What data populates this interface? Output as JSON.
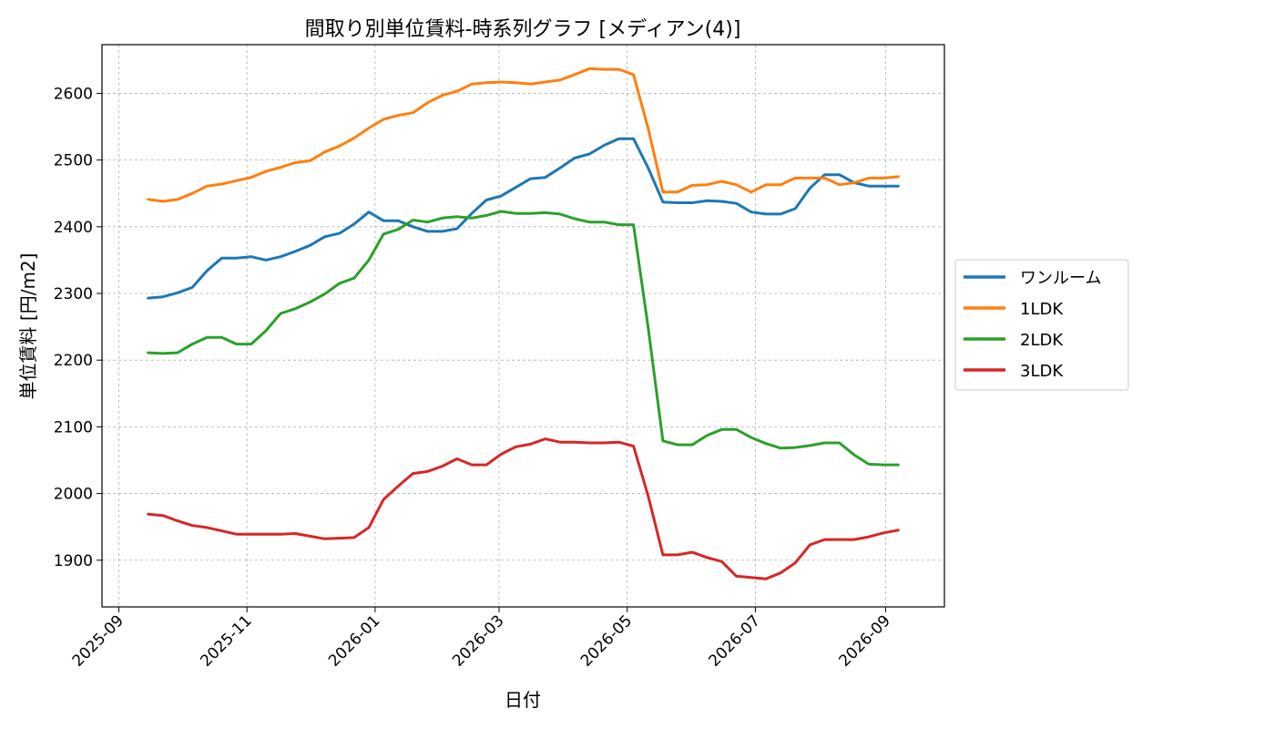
{
  "chart_data": {
    "type": "line",
    "title": "間取り別単位賃料-時系列グラフ [メディアン(4)]",
    "xlabel": "日付",
    "ylabel": "単位賃料 [円/m2]",
    "xlim": [
      "2025-08-24",
      "2026-09-29"
    ],
    "ylim": [
      1830,
      2673
    ],
    "grid": true,
    "legend_position": "right",
    "x_ticks": [
      "2025-09",
      "2025-11",
      "2026-01",
      "2026-03",
      "2026-05",
      "2026-07",
      "2026-09"
    ],
    "y_ticks": [
      1900,
      2000,
      2100,
      2200,
      2300,
      2400,
      2500,
      2600
    ],
    "x": [
      "2025-09-15",
      "2025-09-22",
      "2025-09-29",
      "2025-10-06",
      "2025-10-13",
      "2025-10-20",
      "2025-10-27",
      "2025-11-03",
      "2025-11-10",
      "2025-11-17",
      "2025-11-24",
      "2025-12-01",
      "2025-12-08",
      "2025-12-15",
      "2025-12-22",
      "2025-12-29",
      "2026-01-05",
      "2026-01-12",
      "2026-01-19",
      "2026-01-26",
      "2026-02-02",
      "2026-02-09",
      "2026-02-16",
      "2026-02-23",
      "2026-03-02",
      "2026-03-09",
      "2026-03-16",
      "2026-03-23",
      "2026-03-30",
      "2026-04-06",
      "2026-04-13",
      "2026-04-20",
      "2026-04-27",
      "2026-05-04",
      "2026-05-11",
      "2026-05-18",
      "2026-05-25",
      "2026-06-01",
      "2026-06-08",
      "2026-06-15",
      "2026-06-22",
      "2026-06-29",
      "2026-07-06",
      "2026-07-13",
      "2026-07-20",
      "2026-07-27",
      "2026-08-03",
      "2026-08-10",
      "2026-08-17",
      "2026-08-24",
      "2026-08-31",
      "2026-09-07"
    ],
    "series": [
      {
        "name": "ワンルーム",
        "color": "#1f77b4",
        "values": [
          2293,
          2295,
          2301,
          2309,
          2334,
          2353,
          2353,
          2355,
          2350,
          2355,
          2363,
          2372,
          2385,
          2390,
          2404,
          2422,
          2409,
          2409,
          2400,
          2393,
          2393,
          2397,
          2420,
          2440,
          2446,
          2459,
          2472,
          2474,
          2488,
          2503,
          2509,
          2522,
          2532,
          2532,
          2488,
          2437,
          2436,
          2436,
          2439,
          2438,
          2435,
          2422,
          2419,
          2419,
          2427,
          2458,
          2478,
          2478,
          2466,
          2461,
          2461,
          2461
        ]
      },
      {
        "name": "1LDK",
        "color": "#ff7f0e",
        "values": [
          2441,
          2438,
          2441,
          2450,
          2461,
          2464,
          2469,
          2474,
          2483,
          2489,
          2496,
          2499,
          2512,
          2521,
          2533,
          2548,
          2561,
          2567,
          2571,
          2586,
          2597,
          2603,
          2614,
          2616,
          2617,
          2616,
          2614,
          2617,
          2620,
          2628,
          2637,
          2636,
          2636,
          2628,
          2547,
          2452,
          2452,
          2462,
          2463,
          2468,
          2463,
          2452,
          2463,
          2463,
          2473,
          2473,
          2473,
          2463,
          2466,
          2473,
          2473,
          2475
        ]
      },
      {
        "name": "2LDK",
        "color": "#2ca02c",
        "values": [
          2211,
          2210,
          2211,
          2224,
          2234,
          2234,
          2224,
          2224,
          2244,
          2270,
          2277,
          2287,
          2299,
          2315,
          2323,
          2350,
          2389,
          2396,
          2410,
          2407,
          2413,
          2415,
          2413,
          2417,
          2423,
          2420,
          2420,
          2421,
          2419,
          2412,
          2407,
          2407,
          2403,
          2403,
          2248,
          2079,
          2073,
          2073,
          2087,
          2096,
          2096,
          2084,
          2075,
          2068,
          2069,
          2072,
          2076,
          2076,
          2058,
          2044,
          2043,
          2043
        ]
      },
      {
        "name": "3LDK",
        "color": "#d62728",
        "values": [
          1969,
          1967,
          1959,
          1952,
          1949,
          1944,
          1939,
          1939,
          1939,
          1939,
          1940,
          1936,
          1932,
          1933,
          1934,
          1949,
          1991,
          2011,
          2030,
          2033,
          2041,
          2052,
          2043,
          2043,
          2059,
          2070,
          2074,
          2082,
          2077,
          2077,
          2076,
          2076,
          2077,
          2071,
          1996,
          1908,
          1908,
          1912,
          1904,
          1898,
          1876,
          1874,
          1872,
          1881,
          1896,
          1923,
          1931,
          1931,
          1931,
          1935,
          1941,
          1945
        ]
      }
    ]
  }
}
